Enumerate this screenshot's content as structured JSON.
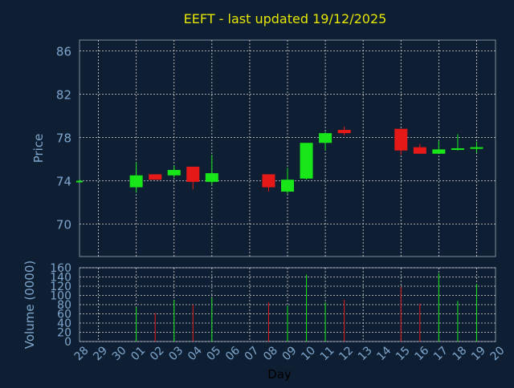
{
  "colors": {
    "background": "#0f1f33",
    "axis_text": "#7fa6cc",
    "title": "#e6e600",
    "grid": "#d8d8d8",
    "up": "#19e619",
    "down": "#e61919",
    "frame": "#7f8c99"
  },
  "chart_data": {
    "type": "candlestick",
    "title": "EEFT - last updated 19/12/2025",
    "xlabel": "Day",
    "price_panel": {
      "ylabel": "Price",
      "ylim": [
        67,
        87
      ],
      "yticks": [
        70,
        74,
        78,
        82,
        86
      ]
    },
    "volume_panel": {
      "ylabel": "Volume (0000)",
      "ylim": [
        0,
        160
      ],
      "yticks": [
        0,
        20,
        40,
        60,
        80,
        100,
        120,
        140,
        160
      ]
    },
    "x_tick_labels": [
      "28",
      "29",
      "30",
      "01",
      "02",
      "03",
      "04",
      "05",
      "06",
      "07",
      "08",
      "09",
      "10",
      "11",
      "12",
      "13",
      "14",
      "15",
      "16",
      "17",
      "18",
      "19",
      "20"
    ],
    "candles": [
      {
        "day": "28",
        "open": 74.0,
        "high": 74.1,
        "low": 73.9,
        "close": 74.0,
        "volume": 0
      },
      {
        "day": "01",
        "open": 73.4,
        "high": 75.7,
        "low": 72.9,
        "close": 74.5,
        "volume": 75
      },
      {
        "day": "02",
        "open": 74.6,
        "high": 74.6,
        "low": 74.1,
        "close": 74.1,
        "volume": 62
      },
      {
        "day": "03",
        "open": 74.5,
        "high": 75.4,
        "low": 74.3,
        "close": 75.0,
        "volume": 90
      },
      {
        "day": "04",
        "open": 75.3,
        "high": 75.3,
        "low": 73.2,
        "close": 73.9,
        "volume": 80
      },
      {
        "day": "05",
        "open": 73.9,
        "high": 76.4,
        "low": 73.6,
        "close": 74.7,
        "volume": 95
      },
      {
        "day": "08",
        "open": 74.6,
        "high": 74.6,
        "low": 73.0,
        "close": 73.4,
        "volume": 85
      },
      {
        "day": "09",
        "open": 73.0,
        "high": 75.2,
        "low": 72.8,
        "close": 74.1,
        "volume": 78
      },
      {
        "day": "10",
        "open": 74.2,
        "high": 77.5,
        "low": 74.1,
        "close": 77.5,
        "volume": 145
      },
      {
        "day": "11",
        "open": 77.5,
        "high": 78.5,
        "low": 76.8,
        "close": 78.4,
        "volume": 85
      },
      {
        "day": "12",
        "open": 78.7,
        "high": 79.0,
        "low": 78.2,
        "close": 78.4,
        "volume": 90
      },
      {
        "day": "15",
        "open": 78.8,
        "high": 78.8,
        "low": 76.4,
        "close": 76.8,
        "volume": 118
      },
      {
        "day": "16",
        "open": 77.1,
        "high": 77.4,
        "low": 76.5,
        "close": 76.5,
        "volume": 82
      },
      {
        "day": "17",
        "open": 76.5,
        "high": 77.7,
        "low": 76.5,
        "close": 76.9,
        "volume": 148
      },
      {
        "day": "18",
        "open": 76.9,
        "high": 78.3,
        "low": 76.8,
        "close": 77.0,
        "volume": 88
      },
      {
        "day": "19",
        "open": 77.0,
        "high": 77.6,
        "low": 76.6,
        "close": 77.1,
        "volume": 125
      }
    ]
  }
}
